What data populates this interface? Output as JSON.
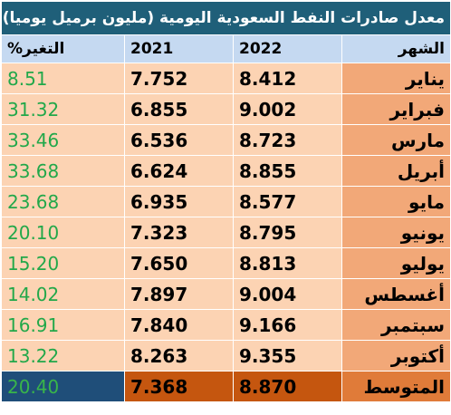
{
  "table": {
    "title": "معدل صادرات النفط السعودية اليومية (مليون برميل يوميا)",
    "header": [
      "الشهر",
      "2022",
      "2021",
      "التغير%"
    ],
    "rows": [
      [
        "يناير",
        "8.412",
        "7.752",
        "8.51"
      ],
      [
        "فبراير",
        "9.002",
        "6.855",
        "31.32"
      ],
      [
        "مارس",
        "8.723",
        "6.536",
        "33.46"
      ],
      [
        "أبريل",
        "8.855",
        "6.624",
        "33.68"
      ],
      [
        "مايو",
        "8.577",
        "6.935",
        "23.68"
      ],
      [
        "يونيو",
        "8.795",
        "7.323",
        "20.10"
      ],
      [
        "يوليو",
        "8.813",
        "7.650",
        "15.20"
      ],
      [
        "أغسطس",
        "9.004",
        "7.897",
        "14.02"
      ],
      [
        "سبتمبر",
        "9.166",
        "7.840",
        "16.91"
      ],
      [
        "أكتوبر",
        "9.355",
        "8.263",
        "13.22"
      ]
    ],
    "average": [
      "المتوسط",
      "8.870",
      "7.368",
      "20.40"
    ]
  }
}
